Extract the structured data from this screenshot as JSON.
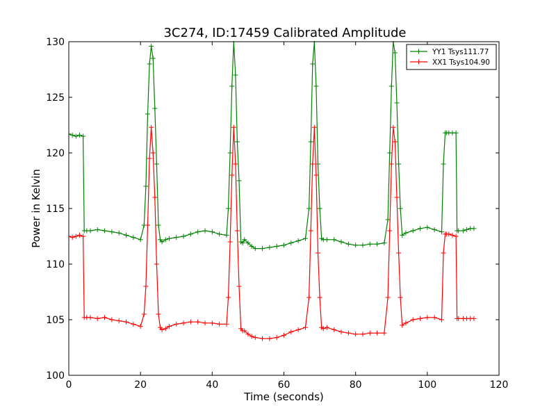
{
  "chart_data": {
    "type": "line",
    "title": "3C274, ID:17459 Calibrated Amplitude",
    "xlabel": "Time (seconds)",
    "ylabel": "Power in Kelvin",
    "xlim": [
      0,
      120
    ],
    "ylim": [
      100,
      130
    ],
    "xticks": [
      0,
      20,
      40,
      60,
      80,
      100,
      120
    ],
    "yticks": [
      100,
      105,
      110,
      115,
      120,
      125,
      130
    ],
    "grid": false,
    "legend_position": "top-right",
    "series": [
      {
        "name": "YY1 Tsys111.77",
        "color": "#008000",
        "marker": "+",
        "x": [
          0,
          1,
          2,
          3,
          4,
          4.3,
          5,
          6,
          8,
          10,
          12,
          14,
          16,
          18,
          20,
          21,
          21.5,
          22,
          22.5,
          23,
          23.5,
          24,
          24.5,
          25,
          25.5,
          26,
          27,
          28,
          30,
          32,
          34,
          36,
          38,
          40,
          42,
          44,
          44.5,
          45,
          45.5,
          46,
          46.5,
          47,
          47.5,
          48,
          48.5,
          49,
          50,
          51,
          52,
          54,
          56,
          58,
          60,
          62,
          64,
          66,
          67,
          67.5,
          68,
          68.5,
          69,
          69.5,
          70,
          70.5,
          71,
          72,
          74,
          76,
          78,
          80,
          82,
          84,
          86,
          88,
          89,
          89.5,
          90,
          90.5,
          91,
          91.5,
          92,
          92.5,
          93,
          94,
          96,
          98,
          100,
          102,
          104,
          104.5,
          105,
          105.4,
          106,
          107,
          108,
          108.3,
          108.7,
          110,
          111,
          112,
          113
        ],
        "values": [
          121.7,
          121.6,
          121.5,
          121.6,
          121.5,
          113.0,
          113.0,
          113.0,
          113.1,
          113.0,
          112.9,
          112.8,
          112.6,
          112.4,
          112.2,
          113.5,
          117.0,
          123.5,
          128.0,
          129.6,
          128.5,
          124.0,
          119.0,
          113.5,
          112.2,
          112.0,
          112.2,
          112.3,
          112.4,
          112.5,
          112.7,
          112.9,
          113.0,
          112.9,
          112.7,
          112.6,
          115.0,
          120.0,
          126.0,
          130.0,
          127.0,
          121.0,
          117.5,
          112.0,
          111.9,
          112.2,
          111.9,
          111.6,
          111.4,
          111.4,
          111.5,
          111.6,
          111.7,
          111.9,
          112.1,
          112.3,
          115.0,
          121.0,
          128.0,
          130.0,
          126.0,
          119.0,
          115.0,
          112.3,
          112.2,
          112.2,
          112.2,
          112.0,
          111.8,
          111.7,
          111.7,
          111.8,
          111.8,
          111.9,
          114.0,
          120.0,
          126.0,
          130.0,
          129.0,
          124.5,
          119.0,
          115.0,
          112.6,
          112.8,
          113.0,
          113.2,
          113.3,
          113.1,
          112.9,
          119.0,
          121.8,
          121.8,
          121.8,
          121.8,
          121.8,
          113.0,
          113.0,
          113.0,
          113.1,
          113.2,
          113.2
        ]
      },
      {
        "name": "XX1 Tsys104.90",
        "color": "#ff0000",
        "marker": "+",
        "x": [
          0,
          1,
          2,
          3,
          4,
          4.3,
          5,
          6,
          8,
          10,
          12,
          14,
          16,
          18,
          20,
          21,
          21.5,
          22,
          22.5,
          23,
          23.5,
          24,
          24.5,
          25,
          25.5,
          26,
          27,
          28,
          30,
          32,
          34,
          36,
          38,
          40,
          42,
          44,
          44.5,
          45,
          45.5,
          46,
          46.5,
          47,
          47.5,
          48,
          48.5,
          49,
          50,
          51,
          52,
          54,
          56,
          58,
          60,
          62,
          64,
          66,
          67,
          67.5,
          68,
          68.5,
          69,
          69.5,
          70,
          70.5,
          71,
          72,
          74,
          76,
          78,
          80,
          82,
          84,
          86,
          88,
          89,
          89.5,
          90,
          90.5,
          91,
          91.5,
          92,
          92.5,
          93,
          94,
          96,
          98,
          100,
          102,
          104,
          104.5,
          105,
          105.4,
          106,
          107,
          108,
          108.3,
          108.7,
          110,
          111,
          112,
          113
        ],
        "values": [
          112.5,
          112.4,
          112.5,
          112.6,
          112.5,
          105.2,
          105.2,
          105.2,
          105.1,
          105.2,
          105.0,
          104.9,
          104.8,
          104.6,
          104.4,
          105.5,
          108.0,
          113.5,
          119.5,
          122.3,
          120.0,
          116.0,
          110.0,
          105.5,
          104.3,
          104.1,
          104.2,
          104.4,
          104.6,
          104.7,
          104.8,
          104.8,
          104.7,
          104.7,
          104.6,
          104.6,
          107.0,
          112.0,
          118.0,
          122.3,
          119.0,
          113.0,
          108.0,
          104.2,
          104.0,
          104.0,
          103.7,
          103.5,
          103.4,
          103.3,
          103.3,
          103.4,
          103.6,
          103.9,
          104.1,
          104.3,
          107.0,
          113.0,
          119.0,
          122.3,
          118.0,
          111.0,
          107.0,
          104.3,
          104.2,
          104.3,
          104.1,
          103.9,
          103.8,
          103.7,
          103.7,
          103.8,
          103.8,
          103.8,
          107.0,
          113.0,
          119.0,
          122.3,
          121.0,
          116.0,
          111.0,
          107.0,
          104.5,
          104.7,
          105.0,
          105.1,
          105.2,
          105.2,
          105.0,
          111.0,
          112.7,
          112.7,
          112.7,
          112.6,
          112.5,
          105.1,
          105.1,
          105.1,
          105.1,
          105.1,
          105.1
        ]
      }
    ]
  }
}
